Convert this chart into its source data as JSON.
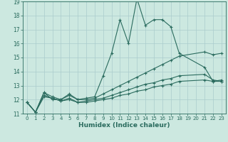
{
  "title": "",
  "xlabel": "Humidex (Indice chaleur)",
  "ylabel": "",
  "bg_color": "#cce8e0",
  "grid_color": "#aacccc",
  "line_color": "#2a6b5e",
  "xlim": [
    -0.5,
    23.5
  ],
  "ylim": [
    11,
    19
  ],
  "yticks": [
    11,
    12,
    13,
    14,
    15,
    16,
    17,
    18,
    19
  ],
  "xticks": [
    0,
    1,
    2,
    3,
    4,
    5,
    6,
    7,
    8,
    9,
    10,
    11,
    12,
    13,
    14,
    15,
    16,
    17,
    18,
    19,
    20,
    21,
    22,
    23
  ],
  "series": [
    {
      "x": [
        0,
        1,
        2,
        3,
        4,
        5,
        6,
        7,
        8,
        9,
        10,
        11,
        12,
        13,
        14,
        15,
        16,
        17,
        18,
        21,
        22,
        23
      ],
      "y": [
        11.8,
        11.1,
        12.5,
        12.2,
        12.0,
        12.4,
        12.0,
        12.1,
        12.2,
        13.7,
        15.3,
        17.7,
        16.0,
        19.2,
        17.3,
        17.7,
        17.7,
        17.2,
        15.3,
        14.3,
        13.3,
        13.4
      ]
    },
    {
      "x": [
        0,
        1,
        2,
        3,
        4,
        5,
        6,
        7,
        8,
        9,
        10,
        11,
        12,
        13,
        14,
        15,
        16,
        17,
        18,
        21,
        22,
        23
      ],
      "y": [
        11.8,
        11.1,
        12.5,
        12.0,
        12.0,
        12.3,
        12.0,
        12.0,
        12.1,
        12.4,
        12.7,
        13.0,
        13.3,
        13.6,
        13.9,
        14.2,
        14.5,
        14.8,
        15.1,
        15.4,
        15.2,
        15.3
      ]
    },
    {
      "x": [
        0,
        1,
        2,
        3,
        4,
        5,
        6,
        7,
        8,
        9,
        10,
        11,
        12,
        13,
        14,
        15,
        16,
        17,
        18,
        21,
        22,
        23
      ],
      "y": [
        11.8,
        11.1,
        12.3,
        12.1,
        11.9,
        12.1,
        11.8,
        11.9,
        12.0,
        12.1,
        12.3,
        12.5,
        12.7,
        12.9,
        13.1,
        13.2,
        13.4,
        13.5,
        13.7,
        13.8,
        13.4,
        13.3
      ]
    },
    {
      "x": [
        0,
        1,
        2,
        3,
        4,
        5,
        6,
        7,
        8,
        9,
        10,
        11,
        12,
        13,
        14,
        15,
        16,
        17,
        18,
        21,
        22,
        23
      ],
      "y": [
        11.8,
        11.1,
        12.2,
        12.1,
        11.9,
        12.0,
        11.8,
        11.8,
        11.9,
        12.0,
        12.1,
        12.3,
        12.4,
        12.6,
        12.7,
        12.9,
        13.0,
        13.1,
        13.3,
        13.4,
        13.3,
        13.3
      ]
    }
  ]
}
